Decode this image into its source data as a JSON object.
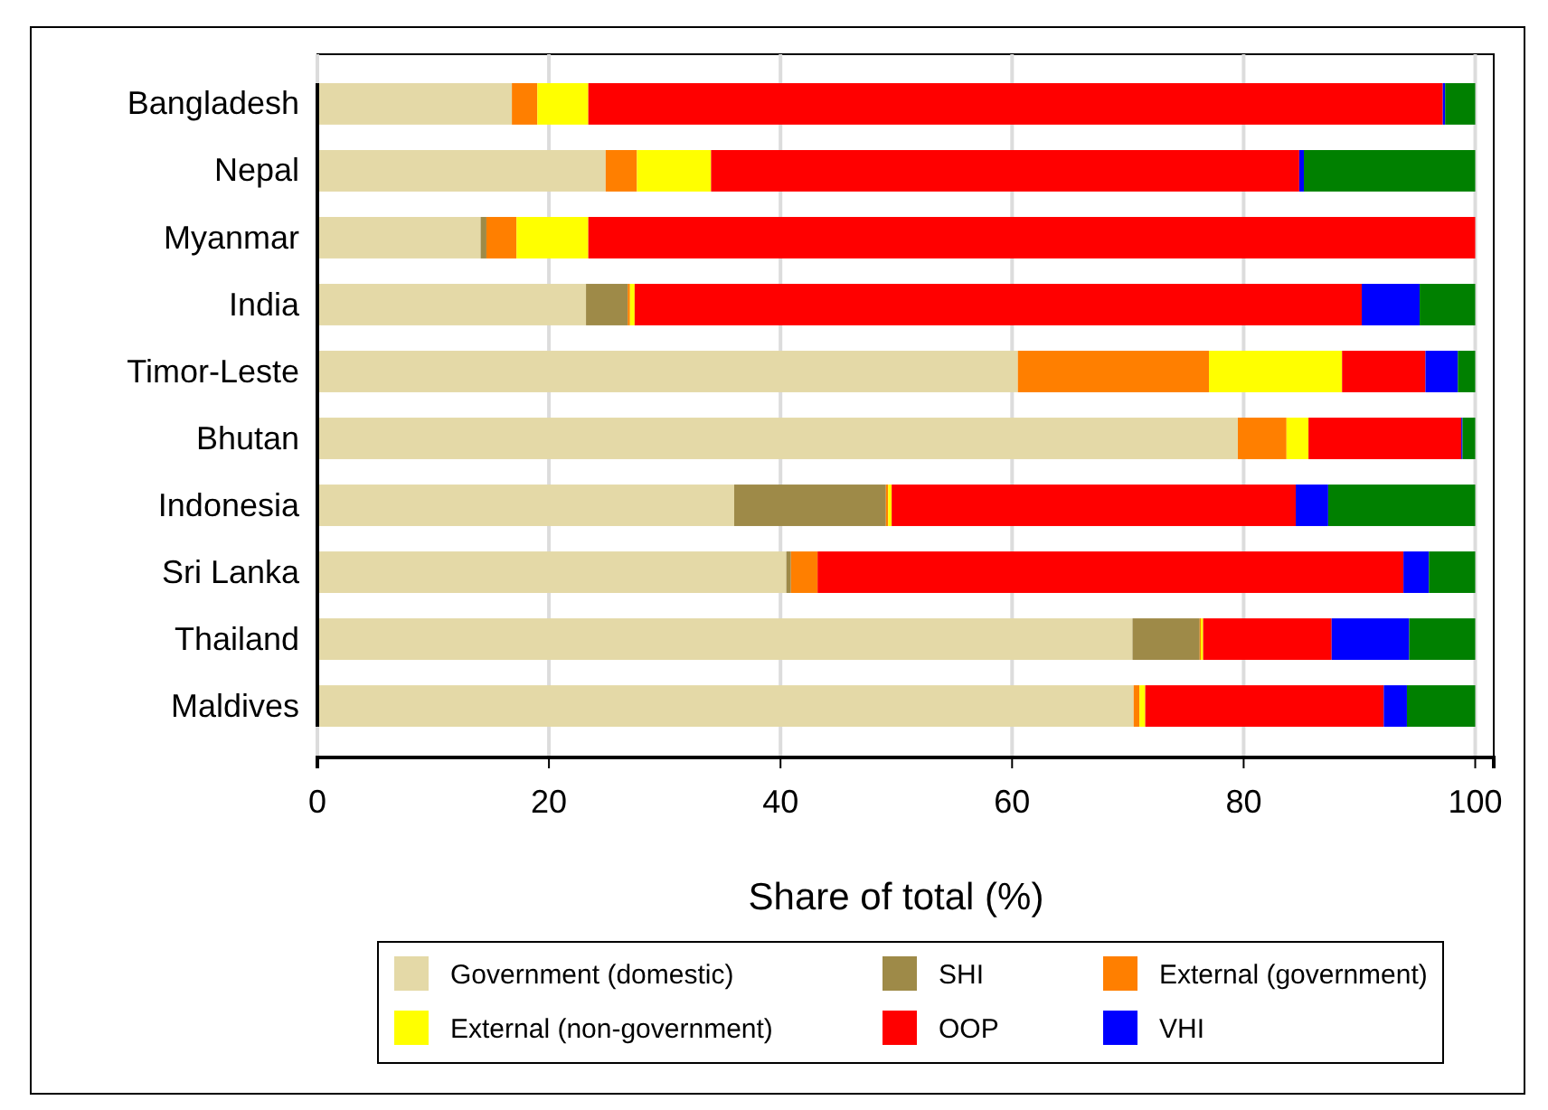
{
  "chart_data": {
    "type": "bar",
    "orientation": "horizontal",
    "stacked": true,
    "categories": [
      "Bangladesh",
      "Nepal",
      "Myanmar",
      "India",
      "Timor-Leste",
      "Bhutan",
      "Indonesia",
      "Sri Lanka",
      "Thailand",
      "Maldives"
    ],
    "series": [
      {
        "name": "Government (domestic)",
        "color": "#e4d9a7",
        "values": [
          16.8,
          24.9,
          14.1,
          23.2,
          60.5,
          79.5,
          36.0,
          40.5,
          70.4,
          70.5
        ]
      },
      {
        "name": "SHI",
        "color": "#9e8a48",
        "values": [
          0,
          0,
          0.5,
          3.6,
          0,
          0,
          13.1,
          0.4,
          5.8,
          0
        ]
      },
      {
        "name": "External (government)",
        "color": "#ff7f00",
        "values": [
          2.2,
          2.7,
          2.6,
          0.2,
          16.5,
          4.2,
          0.2,
          2.3,
          0.1,
          0.5
        ]
      },
      {
        "name": "External (non-government)",
        "color": "#ffff00",
        "values": [
          4.4,
          6.4,
          6.2,
          0.4,
          11.5,
          1.9,
          0.3,
          0,
          0.2,
          0.5
        ]
      },
      {
        "name": "OOP",
        "color": "#ff0000",
        "values": [
          73.8,
          50.8,
          76.6,
          62.8,
          7.2,
          13.2,
          34.9,
          50.6,
          11.1,
          20.6
        ]
      },
      {
        "name": "VHI",
        "color": "#0000ff",
        "values": [
          0.2,
          0.4,
          0,
          5.0,
          2.8,
          0.1,
          2.8,
          2.2,
          6.7,
          2.0
        ]
      },
      {
        "color": "#008000",
        "values": [
          2.6,
          14.8,
          0,
          4.8,
          1.5,
          1.1,
          12.7,
          4.0,
          5.7,
          5.9
        ]
      }
    ],
    "xlabel": "Share of total (%)",
    "xlim": [
      0,
      101.6
    ],
    "xticks": [
      0,
      20,
      40,
      60,
      80,
      100
    ],
    "grid": "x",
    "legend": "bottom"
  }
}
